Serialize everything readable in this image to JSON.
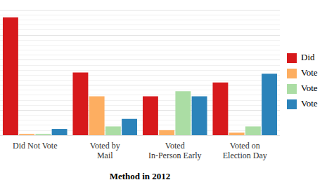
{
  "chart_data": {
    "type": "bar",
    "x_label": "Method in 2012",
    "categories": [
      "Did Not Vote",
      "Voted by\nMail",
      "Voted\nIn-Person Early",
      "Voted on\nElection Day"
    ],
    "series": [
      {
        "name": "Did",
        "color": "#d7191c",
        "values": [
          0.94,
          0.5,
          0.31,
          0.42
        ]
      },
      {
        "name": "Vote",
        "color": "#fdae61",
        "values": [
          0.01,
          0.31,
          0.04,
          0.02
        ]
      },
      {
        "name": "Vote",
        "color": "#abdda4",
        "values": [
          0.01,
          0.07,
          0.35,
          0.07
        ]
      },
      {
        "name": "Vote",
        "color": "#2b83ba",
        "values": [
          0.05,
          0.13,
          0.31,
          0.49
        ]
      }
    ],
    "ylim": [
      0,
      1
    ],
    "yticks": [
      0,
      0.2,
      0.4,
      0.6,
      0.8,
      1
    ],
    "grid": true,
    "legend": "right",
    "tick_labels": "x"
  }
}
